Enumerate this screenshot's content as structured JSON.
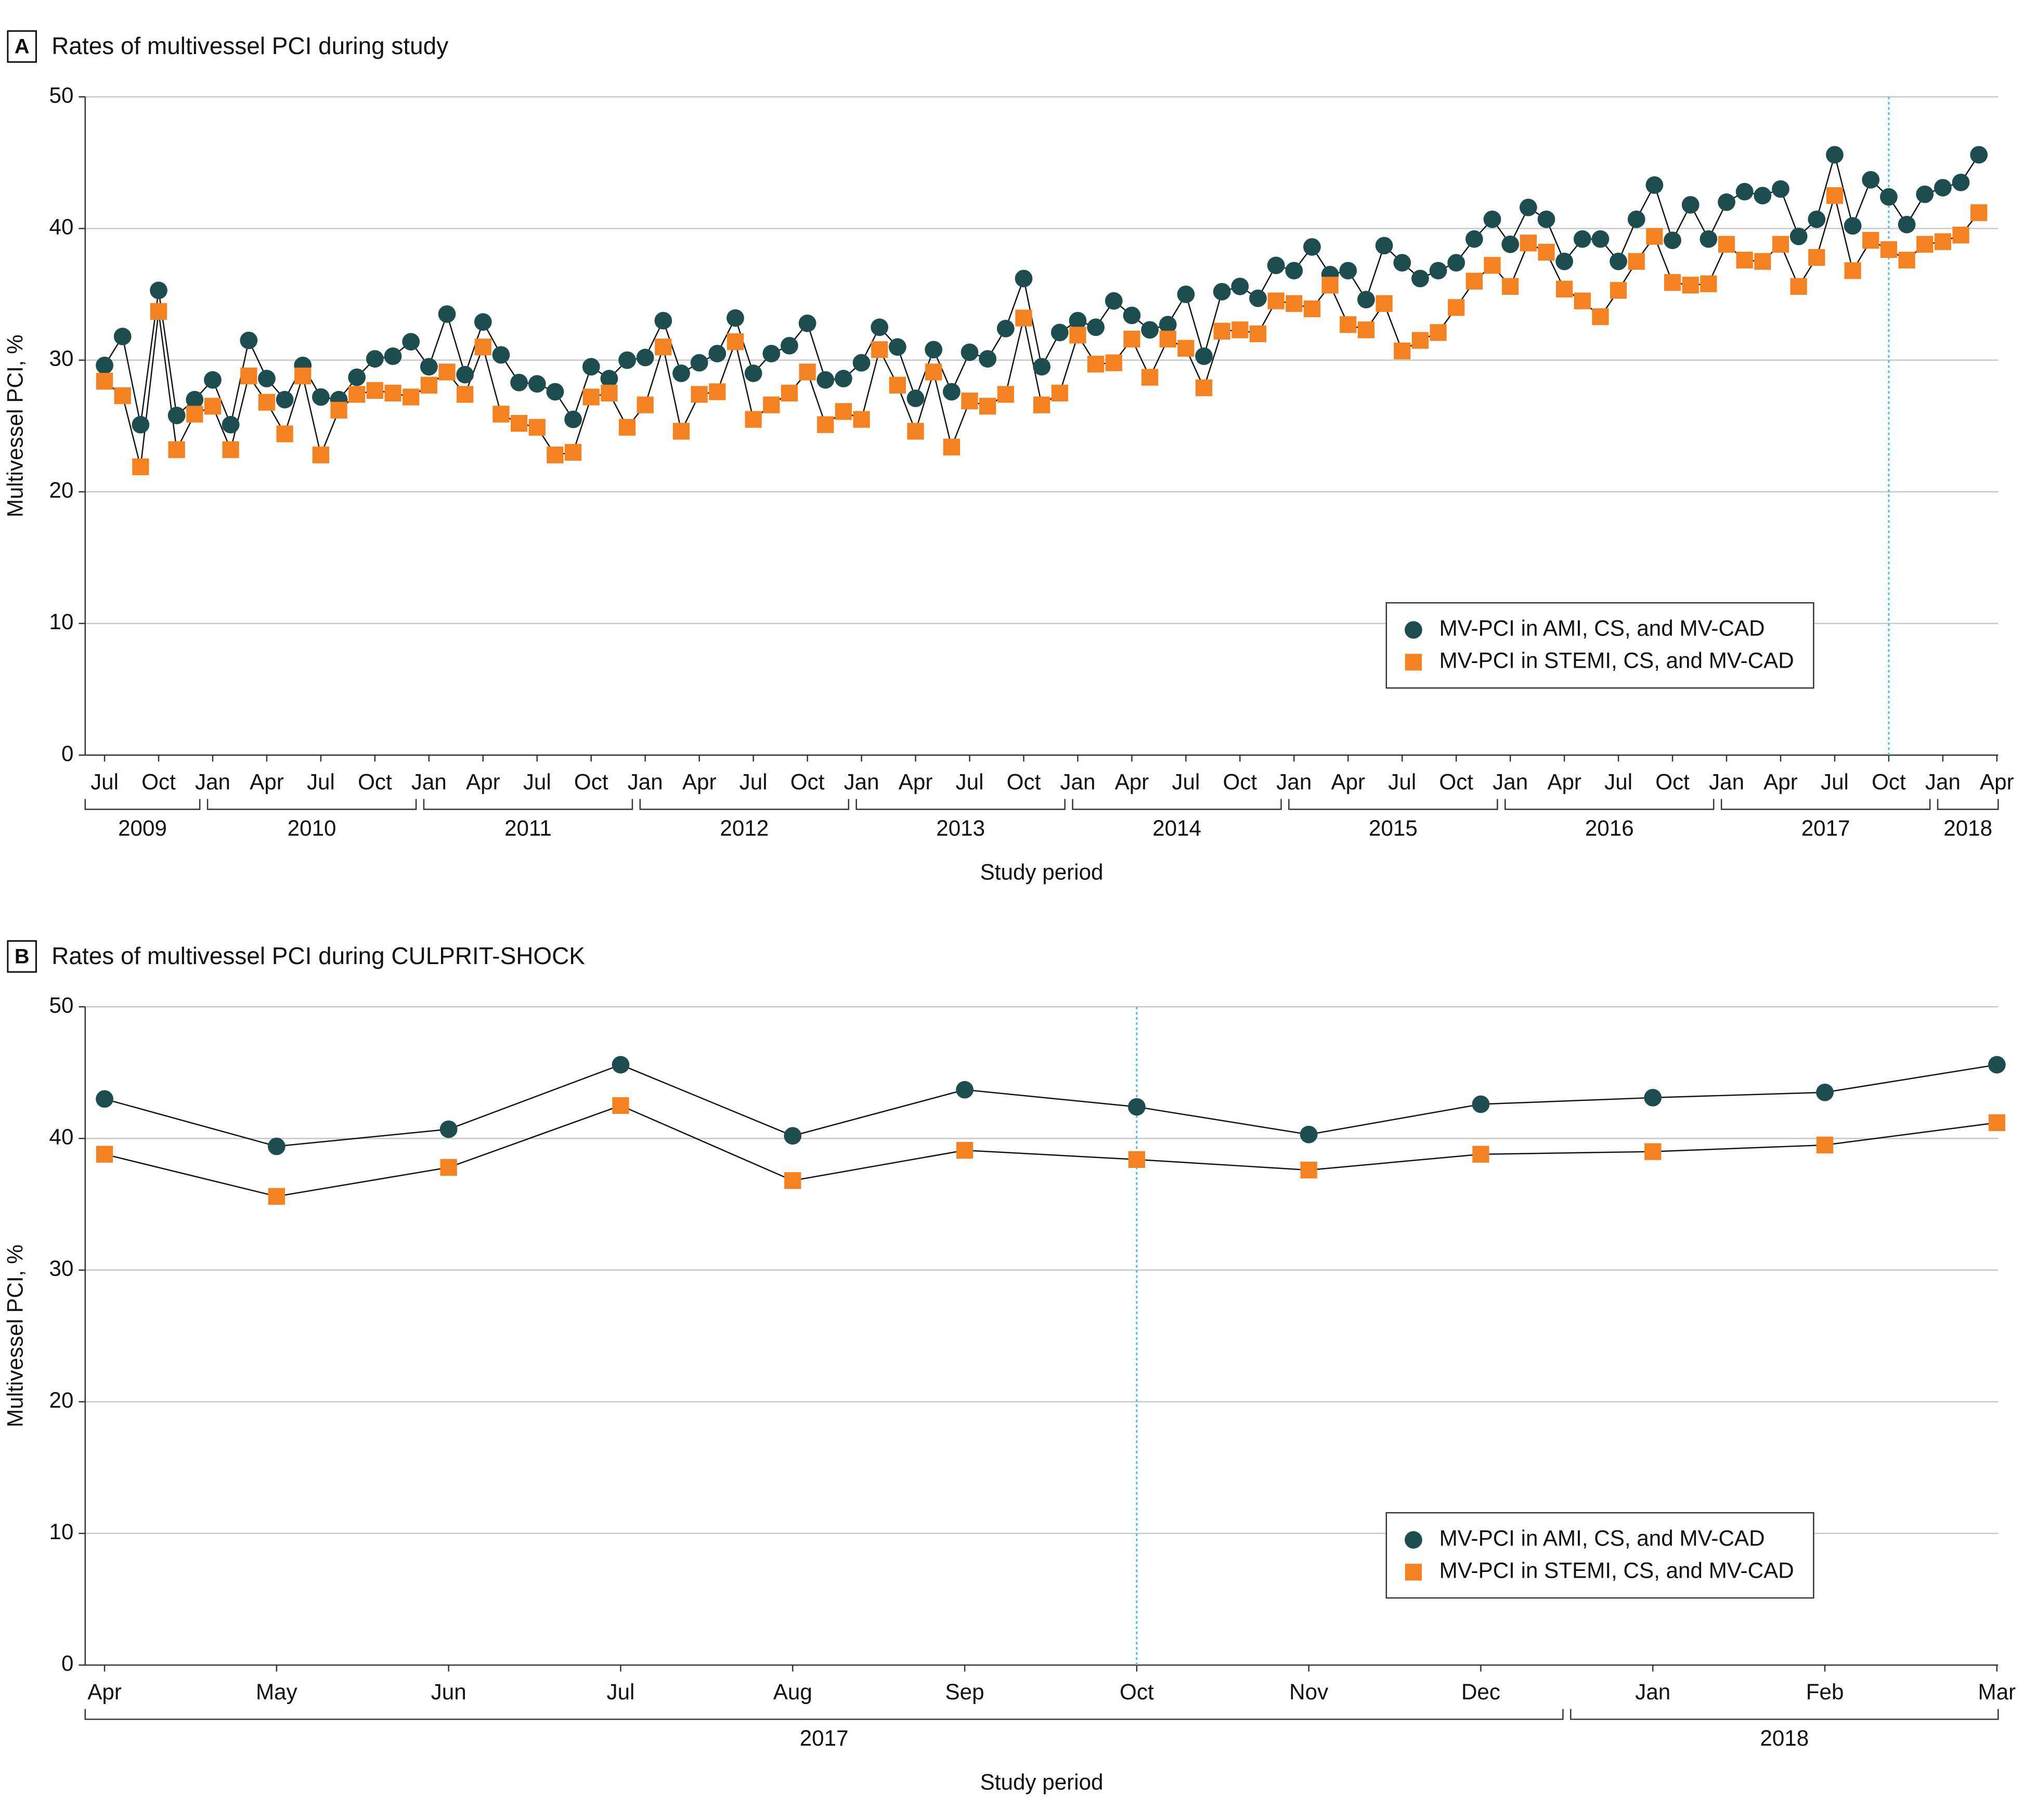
{
  "chart_data": [
    {
      "type": "line",
      "panel_label": "A",
      "title": "Rates of multivessel PCI during study",
      "xlabel": "Study period",
      "ylabel": "Multivessel PCI, %",
      "categories": [
        "Jul",
        null,
        null,
        "Oct",
        null,
        null,
        "Jan",
        null,
        null,
        "Apr",
        null,
        null,
        "Jul",
        null,
        null,
        "Oct",
        null,
        null,
        "Jan",
        null,
        null,
        "Apr",
        null,
        null,
        "Jul",
        null,
        null,
        "Oct",
        null,
        null,
        "Jan",
        null,
        null,
        "Apr",
        null,
        null,
        "Jul",
        null,
        null,
        "Oct",
        null,
        null,
        "Jan",
        null,
        null,
        "Apr",
        null,
        null,
        "Jul",
        null,
        null,
        "Oct",
        null,
        null,
        "Jan",
        null,
        null,
        "Apr",
        null,
        null,
        "Jul",
        null,
        null,
        "Oct",
        null,
        null,
        "Jan",
        null,
        null,
        "Apr",
        null,
        null,
        "Jul",
        null,
        null,
        "Oct",
        null,
        null,
        "Jan",
        null,
        null,
        "Apr",
        null,
        null,
        "Jul",
        null,
        null,
        "Oct",
        null,
        null,
        "Jan",
        null,
        null,
        "Apr",
        null,
        null,
        "Jul",
        null,
        null,
        "Oct",
        null,
        null,
        "Jan",
        null,
        null,
        "Apr"
      ],
      "year_groups": [
        {
          "label": "2009",
          "months": 6
        },
        {
          "label": "2010",
          "months": 12
        },
        {
          "label": "2011",
          "months": 12
        },
        {
          "label": "2012",
          "months": 12
        },
        {
          "label": "2013",
          "months": 12
        },
        {
          "label": "2014",
          "months": 12
        },
        {
          "label": "2015",
          "months": 12
        },
        {
          "label": "2016",
          "months": 12
        },
        {
          "label": "2017",
          "months": 12
        },
        {
          "label": "2018",
          "months": 4
        }
      ],
      "series": [
        {
          "name": "MV-PCI in AMI, CS, and MV-CAD",
          "color": "#1d4d4f",
          "marker": "circle",
          "values": [
            29.6,
            31.8,
            25.1,
            35.3,
            25.8,
            27.0,
            28.5,
            25.1,
            31.5,
            28.6,
            27.0,
            29.6,
            27.2,
            27.0,
            28.7,
            30.1,
            30.3,
            31.4,
            29.5,
            33.5,
            28.9,
            32.9,
            30.4,
            28.3,
            28.2,
            27.6,
            25.5,
            29.5,
            28.6,
            30.0,
            30.2,
            33.0,
            29.0,
            29.8,
            30.5,
            33.2,
            29.0,
            30.5,
            31.1,
            32.8,
            28.5,
            28.6,
            29.8,
            32.5,
            31.0,
            27.1,
            30.8,
            27.6,
            30.6,
            30.1,
            32.4,
            36.2,
            29.5,
            32.1,
            33.0,
            32.5,
            34.5,
            33.4,
            32.3,
            32.7,
            35.0,
            30.3,
            35.2,
            35.6,
            34.7,
            37.2,
            36.8,
            38.6,
            36.5,
            36.8,
            34.6,
            38.7,
            37.4,
            36.2,
            36.8,
            37.4,
            39.2,
            40.7,
            38.8,
            41.6,
            40.7,
            37.5,
            39.2,
            39.2,
            37.5,
            40.7,
            43.3,
            39.1,
            41.8,
            39.2,
            42.0,
            42.8,
            42.5,
            43.0,
            39.4,
            40.7,
            45.6,
            40.2,
            43.7,
            42.4,
            40.3,
            42.6,
            43.1,
            43.5,
            45.6,
            null
          ]
        },
        {
          "name": "MV-PCI in STEMI, CS, and MV-CAD",
          "color": "#f58220",
          "marker": "square",
          "values": [
            28.4,
            27.3,
            21.9,
            33.7,
            23.2,
            25.9,
            26.5,
            23.2,
            28.8,
            26.8,
            24.4,
            28.8,
            22.8,
            26.2,
            27.4,
            27.7,
            27.5,
            27.2,
            28.1,
            29.1,
            27.4,
            31.0,
            25.9,
            25.2,
            24.9,
            22.8,
            23.0,
            27.2,
            27.5,
            24.9,
            26.6,
            31.0,
            24.6,
            27.4,
            27.6,
            31.4,
            25.5,
            26.6,
            27.5,
            29.1,
            25.1,
            26.1,
            25.5,
            30.8,
            28.1,
            24.6,
            29.1,
            23.4,
            26.9,
            26.5,
            27.4,
            33.2,
            26.6,
            27.5,
            31.9,
            29.7,
            29.8,
            31.6,
            28.7,
            31.6,
            30.9,
            27.9,
            32.2,
            32.3,
            32.0,
            34.5,
            34.3,
            33.9,
            35.7,
            32.7,
            32.3,
            34.3,
            30.7,
            31.5,
            32.1,
            34.0,
            36.0,
            37.2,
            35.6,
            38.9,
            38.2,
            35.4,
            34.5,
            33.3,
            35.3,
            37.5,
            39.4,
            35.9,
            35.7,
            35.8,
            38.8,
            37.6,
            37.5,
            38.8,
            35.6,
            37.8,
            42.5,
            36.8,
            39.1,
            38.4,
            37.6,
            38.8,
            39.0,
            39.5,
            41.2,
            null
          ]
        }
      ],
      "ylim": [
        0,
        50
      ],
      "yticks": [
        0,
        10,
        20,
        30,
        40,
        50
      ],
      "grid": true,
      "legend": "lower right",
      "reference_line": {
        "index": 99,
        "color": "#4fc3dd"
      }
    },
    {
      "type": "line",
      "panel_label": "B",
      "title": "Rates of multivessel PCI during CULPRIT-SHOCK",
      "xlabel": "Study period",
      "ylabel": "Multivessel PCI, %",
      "categories": [
        "Apr",
        "May",
        "Jun",
        "Jul",
        "Aug",
        "Sep",
        "Oct",
        "Nov",
        "Dec",
        "Jan",
        "Feb",
        "Mar"
      ],
      "year_groups": [
        {
          "label": "2017",
          "months": 9
        },
        {
          "label": "2018",
          "months": 3
        }
      ],
      "series": [
        {
          "name": "MV-PCI in AMI, CS, and MV-CAD",
          "color": "#1d4d4f",
          "marker": "circle",
          "values": [
            43.0,
            39.4,
            40.7,
            45.6,
            40.2,
            43.7,
            42.4,
            40.3,
            42.6,
            43.1,
            43.5,
            45.6
          ]
        },
        {
          "name": "MV-PCI in STEMI, CS, and MV-CAD",
          "color": "#f58220",
          "marker": "square",
          "values": [
            38.8,
            35.6,
            37.8,
            42.5,
            36.8,
            39.1,
            38.4,
            37.6,
            38.8,
            39.0,
            39.5,
            41.2
          ]
        }
      ],
      "ylim": [
        0,
        50
      ],
      "yticks": [
        0,
        10,
        20,
        30,
        40,
        50
      ],
      "grid": true,
      "legend": "lower right",
      "reference_line": {
        "index": 6,
        "color": "#4fc3dd"
      }
    }
  ]
}
